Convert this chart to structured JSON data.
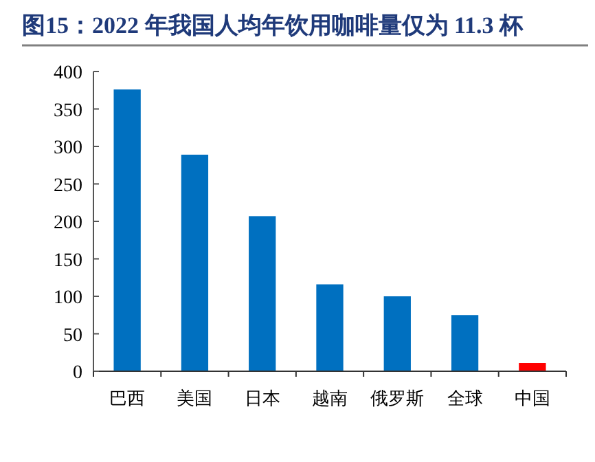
{
  "chart_data": {
    "type": "bar",
    "title": "图15：2022 年我国人均年饮用咖啡量仅为 11.3 杯",
    "categories": [
      "巴西",
      "美国",
      "日本",
      "越南",
      "俄罗斯",
      "全球",
      "中国"
    ],
    "values": [
      376,
      289,
      207,
      116,
      100,
      75,
      11
    ],
    "colors": [
      "#0070c0",
      "#0070c0",
      "#0070c0",
      "#0070c0",
      "#0070c0",
      "#0070c0",
      "#ff0000"
    ],
    "ylim": [
      0,
      400
    ],
    "yticks": [
      0,
      50,
      100,
      150,
      200,
      250,
      300,
      350,
      400
    ],
    "grid": false
  }
}
